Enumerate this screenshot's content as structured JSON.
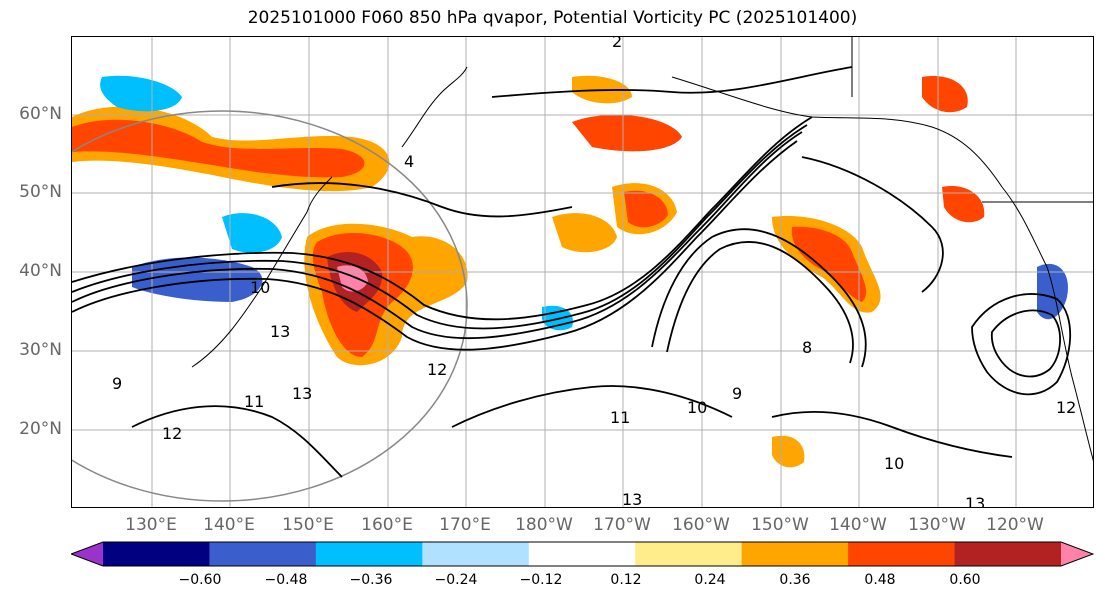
{
  "title": "2025101000 F060 850 hPa qvapor, Potential Vorticity PC (2025101400)",
  "lat_labels": [
    "60°N",
    "50°N",
    "40°N",
    "30°N",
    "20°N"
  ],
  "lon_labels": [
    "130°E",
    "140°E",
    "150°E",
    "160°E",
    "170°E",
    "180°W",
    "170°W",
    "160°W",
    "150°W",
    "140°W",
    "130°W",
    "120°W"
  ],
  "contour_labels": [
    "2",
    "4",
    "10",
    "13",
    "12",
    "9",
    "11",
    "12",
    "13",
    "8",
    "10",
    "9",
    "11",
    "13",
    "10",
    "12",
    "13"
  ],
  "colorbar": {
    "ticks": [
      "−0.60",
      "−0.48",
      "−0.36",
      "−0.24",
      "−0.12",
      "0.12",
      "0.24",
      "0.36",
      "0.48",
      "0.60"
    ],
    "colors": [
      "#9933cc",
      "#000080",
      "#3a5fcd",
      "#00bfff",
      "#b0e2ff",
      "#ffffff",
      "#ffec8b",
      "#ffa500",
      "#ff4500",
      "#b22222",
      "#ff82ab"
    ]
  }
}
